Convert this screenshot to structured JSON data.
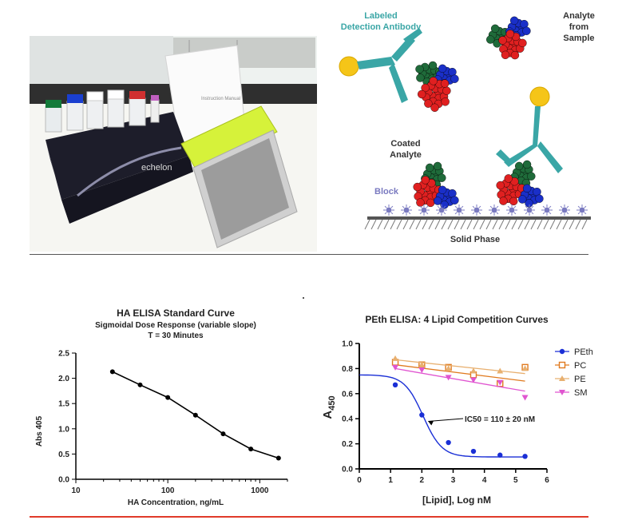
{
  "photo": {
    "box_label": "echelon",
    "sheet_label": "Instruction Manual"
  },
  "diagram": {
    "labels": {
      "detection_antibody": [
        "Labeled",
        "Detection Antibody"
      ],
      "analyte_sample": [
        "Analyte",
        "from",
        "Sample"
      ],
      "coated_analyte": [
        "Coated",
        "Analyte"
      ],
      "block": "Block",
      "solid_phase": "Solid Phase"
    },
    "colors": {
      "antibody": "#3aa6a6",
      "label": "#f5c518",
      "green": "#1f6b3a",
      "red": "#e02020",
      "blue": "#1a2fc8",
      "block": "#7a7ac0"
    }
  },
  "chart_data": [
    {
      "type": "line",
      "title": "HA ELISA Standard Curve",
      "subtitle": [
        "Sigmoidal Dose Response (variable slope)",
        "T = 30 Minutes"
      ],
      "xlabel": "HA Concentration, ng/mL",
      "ylabel": "Abs 405",
      "xscale": "log",
      "xlim": [
        10,
        2000
      ],
      "ylim": [
        0,
        2.5
      ],
      "xticks": [
        10,
        100,
        1000
      ],
      "xtick_labels": [
        "10",
        "100",
        "1000"
      ],
      "yticks": [
        0,
        0.5,
        1.0,
        1.5,
        2.0,
        2.5
      ],
      "ytick_labels": [
        "0.0",
        "0.5",
        "1.0",
        "1.5",
        "2.0",
        "2.5"
      ],
      "series": [
        {
          "x": [
            25,
            50,
            100,
            200,
            400,
            800,
            1600
          ],
          "y": [
            2.13,
            1.87,
            1.62,
            1.27,
            0.9,
            0.6,
            0.42
          ],
          "color": "#000000"
        }
      ],
      "grid": false,
      "legend": "none"
    },
    {
      "type": "scatter",
      "title": "PEth ELISA: 4 Lipid Competition Curves",
      "xlabel": "[Lipid], Log nM",
      "ylabel": "A450",
      "xlim": [
        0,
        6
      ],
      "ylim": [
        0,
        1.0
      ],
      "xticks": [
        0,
        1,
        2,
        3,
        4,
        5,
        6
      ],
      "xtick_labels": [
        "0",
        "1",
        "2",
        "3",
        "4",
        "5",
        "6"
      ],
      "yticks": [
        0,
        0.2,
        0.4,
        0.6,
        0.8,
        1.0
      ],
      "ytick_labels": [
        "0.0",
        "0.2",
        "0.4",
        "0.6",
        "0.8",
        "1.0"
      ],
      "annotation": "IC50 = 110 ± 20 nM",
      "grid": false,
      "legend": "top-right",
      "series": [
        {
          "name": "PEth",
          "color": "#1a2fd6",
          "marker": "circle",
          "x": [
            1.15,
            2.0,
            2.85,
            3.65,
            4.5,
            5.3
          ],
          "y": [
            0.67,
            0.43,
            0.21,
            0.14,
            0.11,
            0.1
          ],
          "fit": {
            "top": 0.75,
            "bottom": 0.095,
            "logec50": 2.04,
            "hill": -1.45
          }
        },
        {
          "name": "PC",
          "color": "#e07a1f",
          "marker": "square",
          "x": [
            1.15,
            2.0,
            2.85,
            3.65,
            4.5,
            5.3
          ],
          "y": [
            0.85,
            0.83,
            0.81,
            0.75,
            0.68,
            0.81
          ],
          "fit_line": [
            [
              1.15,
              0.83
            ],
            [
              5.3,
              0.7
            ]
          ]
        },
        {
          "name": "PE",
          "color": "#e8b070",
          "marker": "triangle-up",
          "x": [
            1.15,
            2.0,
            2.85,
            3.65,
            4.5,
            5.3
          ],
          "y": [
            0.88,
            0.83,
            0.8,
            0.78,
            0.78,
            0.8
          ],
          "fit_line": [
            [
              1.15,
              0.87
            ],
            [
              5.3,
              0.76
            ]
          ]
        },
        {
          "name": "SM",
          "color": "#e055d0",
          "marker": "triangle-down",
          "x": [
            1.15,
            2.0,
            2.85,
            3.65,
            4.5,
            5.3
          ],
          "y": [
            0.81,
            0.79,
            0.73,
            0.71,
            0.69,
            0.57
          ],
          "fit_line": [
            [
              1.15,
              0.8
            ],
            [
              5.3,
              0.62
            ]
          ]
        }
      ]
    }
  ]
}
